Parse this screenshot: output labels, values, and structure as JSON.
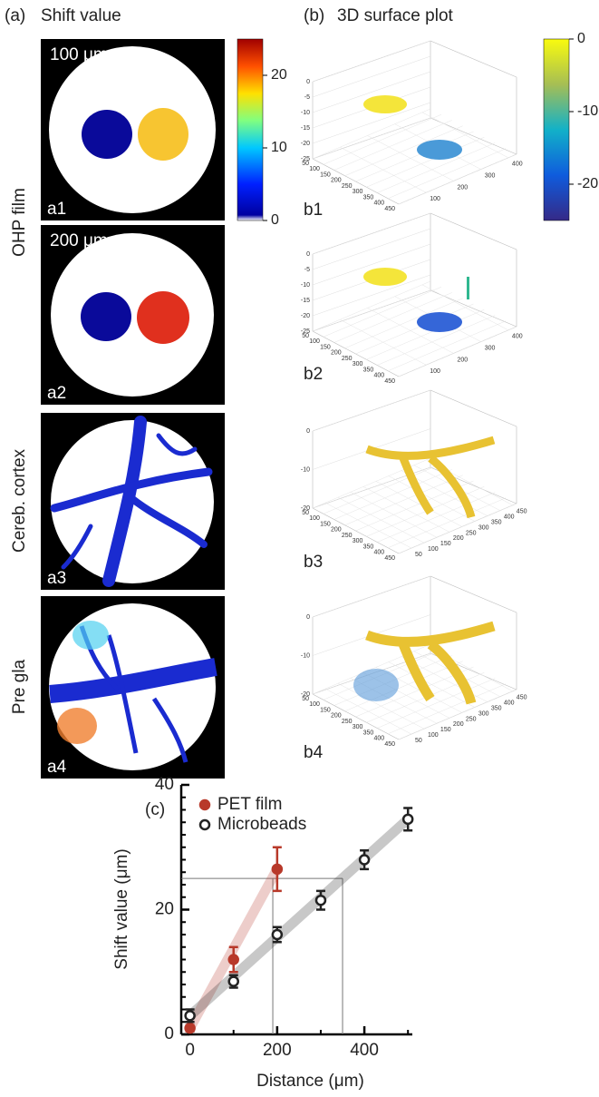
{
  "panel_a": {
    "label": "(a)",
    "title": "Shift value",
    "scale_labels": [
      "100 μm",
      "200 μm"
    ],
    "row_labels": [
      "OHP film",
      "Cereb. cortex",
      "Pre gla"
    ],
    "tile_labels": [
      "a1",
      "a2",
      "a3",
      "a4"
    ],
    "colorbar": {
      "lim": [
        0,
        25
      ],
      "ticks": [
        0,
        10,
        20
      ]
    }
  },
  "panel_b": {
    "label": "(b)",
    "title": "3D surface plot",
    "tile_labels": [
      "b1",
      "b2",
      "b3",
      "b4"
    ],
    "colorbar": {
      "lim": [
        -25,
        0
      ],
      "ticks": [
        0,
        -10,
        -20
      ]
    },
    "plots": [
      {
        "z_ticks": [
          0,
          -5,
          -10,
          -15,
          -20,
          -25
        ],
        "y_ticks": [
          50,
          100,
          150,
          200,
          250,
          300,
          350,
          400,
          450
        ],
        "x_ticks": [
          100,
          200,
          300,
          400
        ]
      },
      {
        "z_ticks": [
          0,
          -5,
          -10,
          -15,
          -20,
          -25
        ],
        "y_ticks": [
          50,
          100,
          150,
          200,
          250,
          300,
          350,
          400,
          450
        ],
        "x_ticks": [
          100,
          200,
          300,
          400
        ]
      },
      {
        "z_ticks": [
          0,
          -10,
          -20
        ],
        "y_ticks": [
          50,
          100,
          150,
          200,
          250,
          300,
          350,
          400,
          450
        ],
        "x_ticks": [
          50,
          100,
          150,
          200,
          250,
          300,
          350,
          400,
          450
        ]
      },
      {
        "z_ticks": [
          0,
          -10,
          -20
        ],
        "y_ticks": [
          50,
          100,
          150,
          200,
          250,
          300,
          350,
          400,
          450
        ],
        "x_ticks": [
          50,
          100,
          150,
          200,
          250,
          300,
          350,
          400,
          450
        ]
      }
    ]
  },
  "chart_data": {
    "type": "scatter",
    "label": "(c)",
    "x_label": "Distance (μm)",
    "y_label": "Shift value (μm)",
    "xlim": [
      -20,
      510
    ],
    "ylim": [
      0,
      40
    ],
    "xticks": [
      0,
      200,
      400
    ],
    "xminor_ticks": [
      100,
      300,
      500
    ],
    "yticks": [
      0,
      20,
      40
    ],
    "yminor_ticks": [
      2,
      4,
      6,
      8,
      10,
      12,
      14,
      16,
      18,
      22,
      24,
      26,
      28,
      30,
      32,
      34,
      36,
      38
    ],
    "legend": "top-left",
    "guides": {
      "y": 25,
      "x": [
        190,
        350
      ]
    },
    "series": [
      {
        "name": "PET film",
        "color": "#b8392a",
        "x": [
          0,
          100,
          200
        ],
        "values": [
          1,
          12,
          26.5
        ],
        "errors": [
          0.5,
          2,
          3.5
        ],
        "marker": "filled"
      },
      {
        "name": "Microbeads",
        "color": "#222222",
        "x": [
          0,
          100,
          200,
          300,
          400,
          500
        ],
        "values": [
          3,
          8.5,
          16,
          21.5,
          28,
          34.5
        ],
        "errors": [
          1,
          1,
          1.2,
          1.5,
          1.5,
          1.8
        ],
        "marker": "open"
      }
    ]
  }
}
